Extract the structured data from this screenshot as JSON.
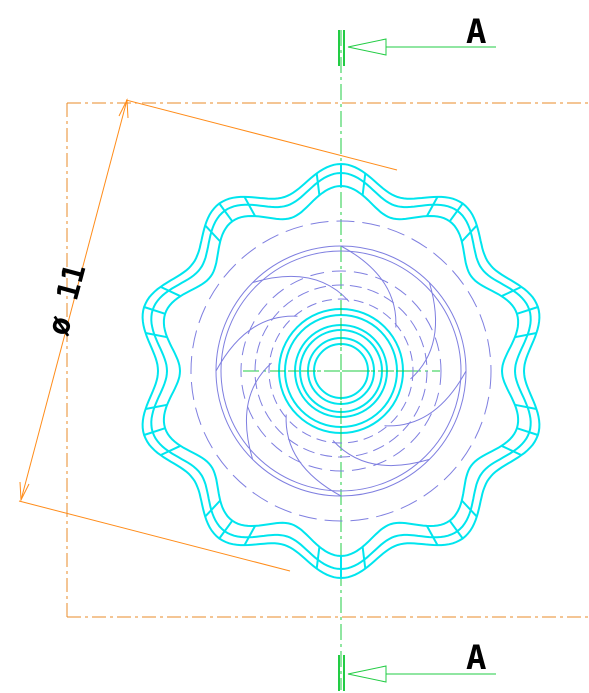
{
  "drawing": {
    "section_label_top": "A",
    "section_label_bottom": "A",
    "dimension_text": "ø 11",
    "colors": {
      "knob_outline": "#00e5ee",
      "hidden_lines": "#7f7fe0",
      "center_lines": "#22cc44",
      "dimension": "#ff8c1a",
      "border": "#e88b2a",
      "text": "#000000"
    }
  }
}
